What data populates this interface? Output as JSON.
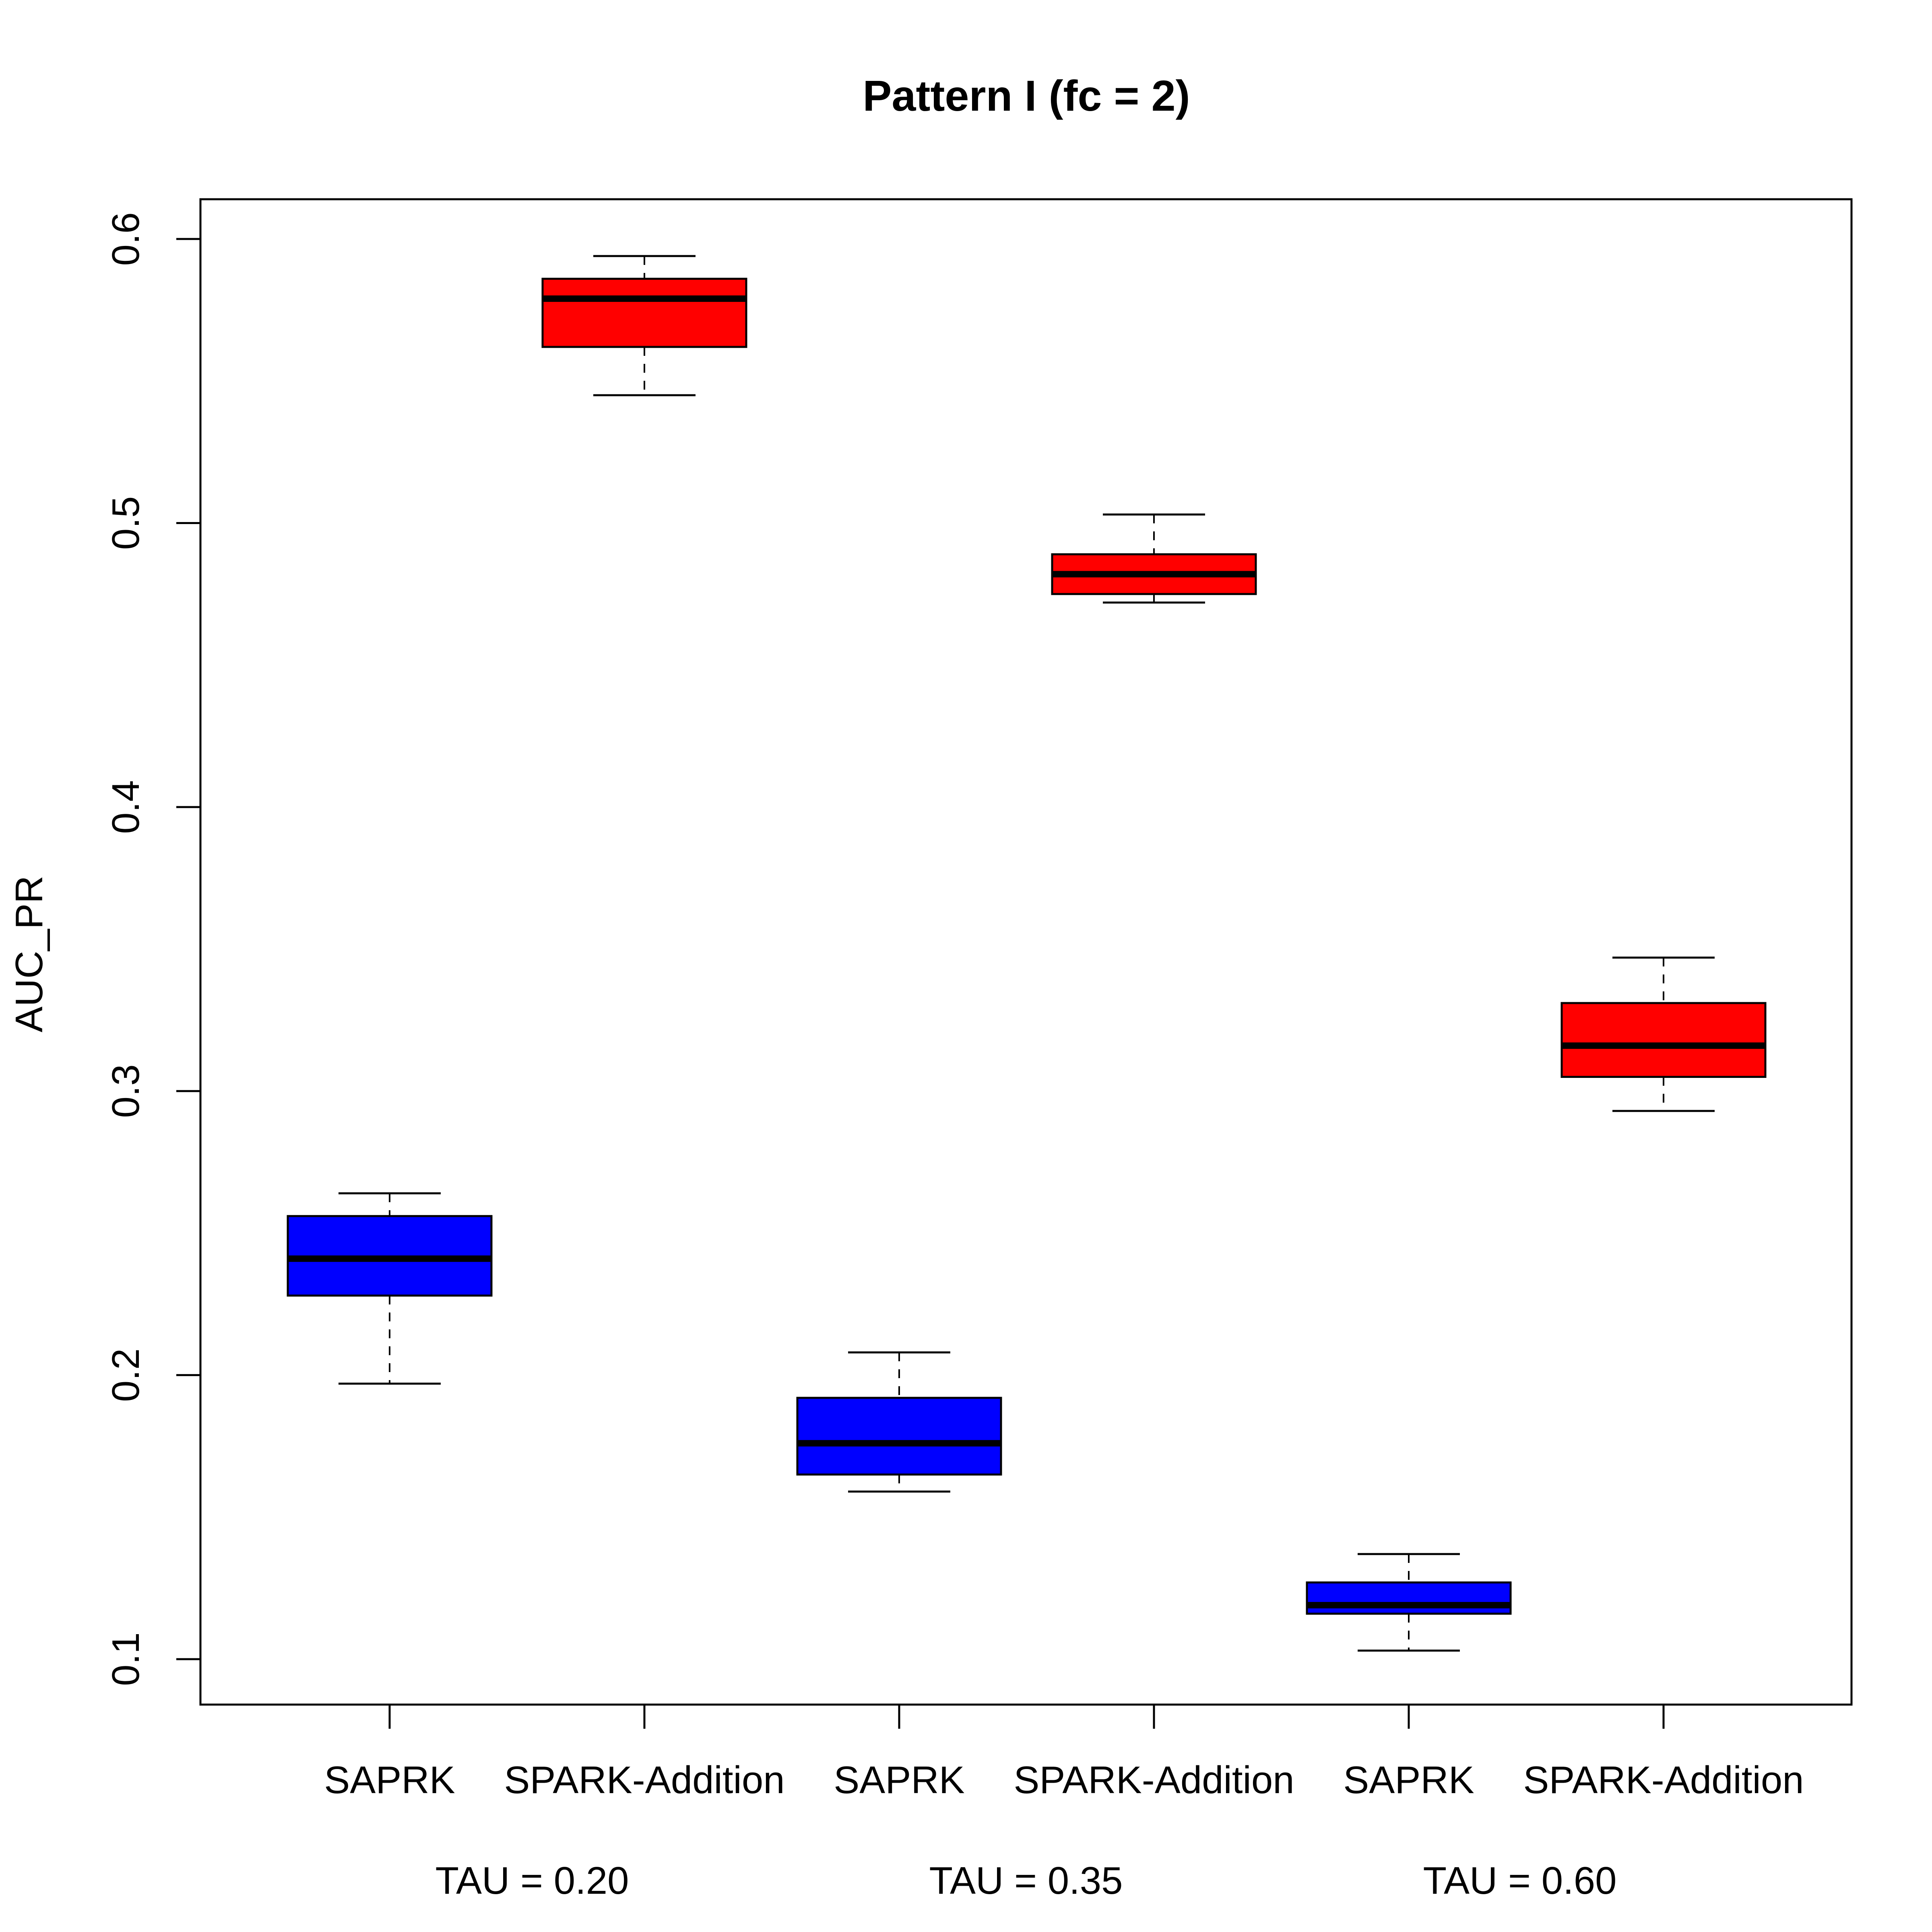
{
  "chart_data": {
    "type": "boxplot",
    "title": "Pattern I (fc = 2)",
    "xlabel": "",
    "ylabel": "AUC_PR",
    "ylim": [
      0.084,
      0.614
    ],
    "yticks": [
      0.1,
      0.2,
      0.3,
      0.4,
      0.5,
      0.6
    ],
    "ytick_labels": [
      "0.1",
      "0.2",
      "0.3",
      "0.4",
      "0.5",
      "0.6"
    ],
    "grid": false,
    "legend": "none",
    "categories": [
      "SAPRK",
      "SPARK-Addition",
      "SAPRK",
      "SPARK-Addition",
      "SAPRK",
      "SPARK-Addition"
    ],
    "groups": [
      {
        "label": "TAU = 0.20"
      },
      {
        "label": "TAU = 0.35"
      },
      {
        "label": "TAU = 0.60"
      }
    ],
    "boxes": [
      {
        "category": "SAPRK",
        "group": "TAU = 0.20",
        "color": "#0000ff",
        "whisker_low": 0.197,
        "q1": 0.228,
        "median": 0.241,
        "q3": 0.256,
        "whisker_high": 0.264
      },
      {
        "category": "SPARK-Addition",
        "group": "TAU = 0.20",
        "color": "#ff0000",
        "whisker_low": 0.545,
        "q1": 0.562,
        "median": 0.579,
        "q3": 0.586,
        "whisker_high": 0.594
      },
      {
        "category": "SAPRK",
        "group": "TAU = 0.35",
        "color": "#0000ff",
        "whisker_low": 0.159,
        "q1": 0.165,
        "median": 0.176,
        "q3": 0.192,
        "whisker_high": 0.208
      },
      {
        "category": "SPARK-Addition",
        "group": "TAU = 0.35",
        "color": "#ff0000",
        "whisker_low": 0.472,
        "q1": 0.475,
        "median": 0.482,
        "q3": 0.489,
        "whisker_high": 0.503
      },
      {
        "category": "SAPRK",
        "group": "TAU = 0.60",
        "color": "#0000ff",
        "whisker_low": 0.103,
        "q1": 0.116,
        "median": 0.119,
        "q3": 0.127,
        "whisker_high": 0.137
      },
      {
        "category": "SPARK-Addition",
        "group": "TAU = 0.60",
        "color": "#ff0000",
        "whisker_low": 0.293,
        "q1": 0.305,
        "median": 0.316,
        "q3": 0.331,
        "whisker_high": 0.347
      }
    ]
  }
}
